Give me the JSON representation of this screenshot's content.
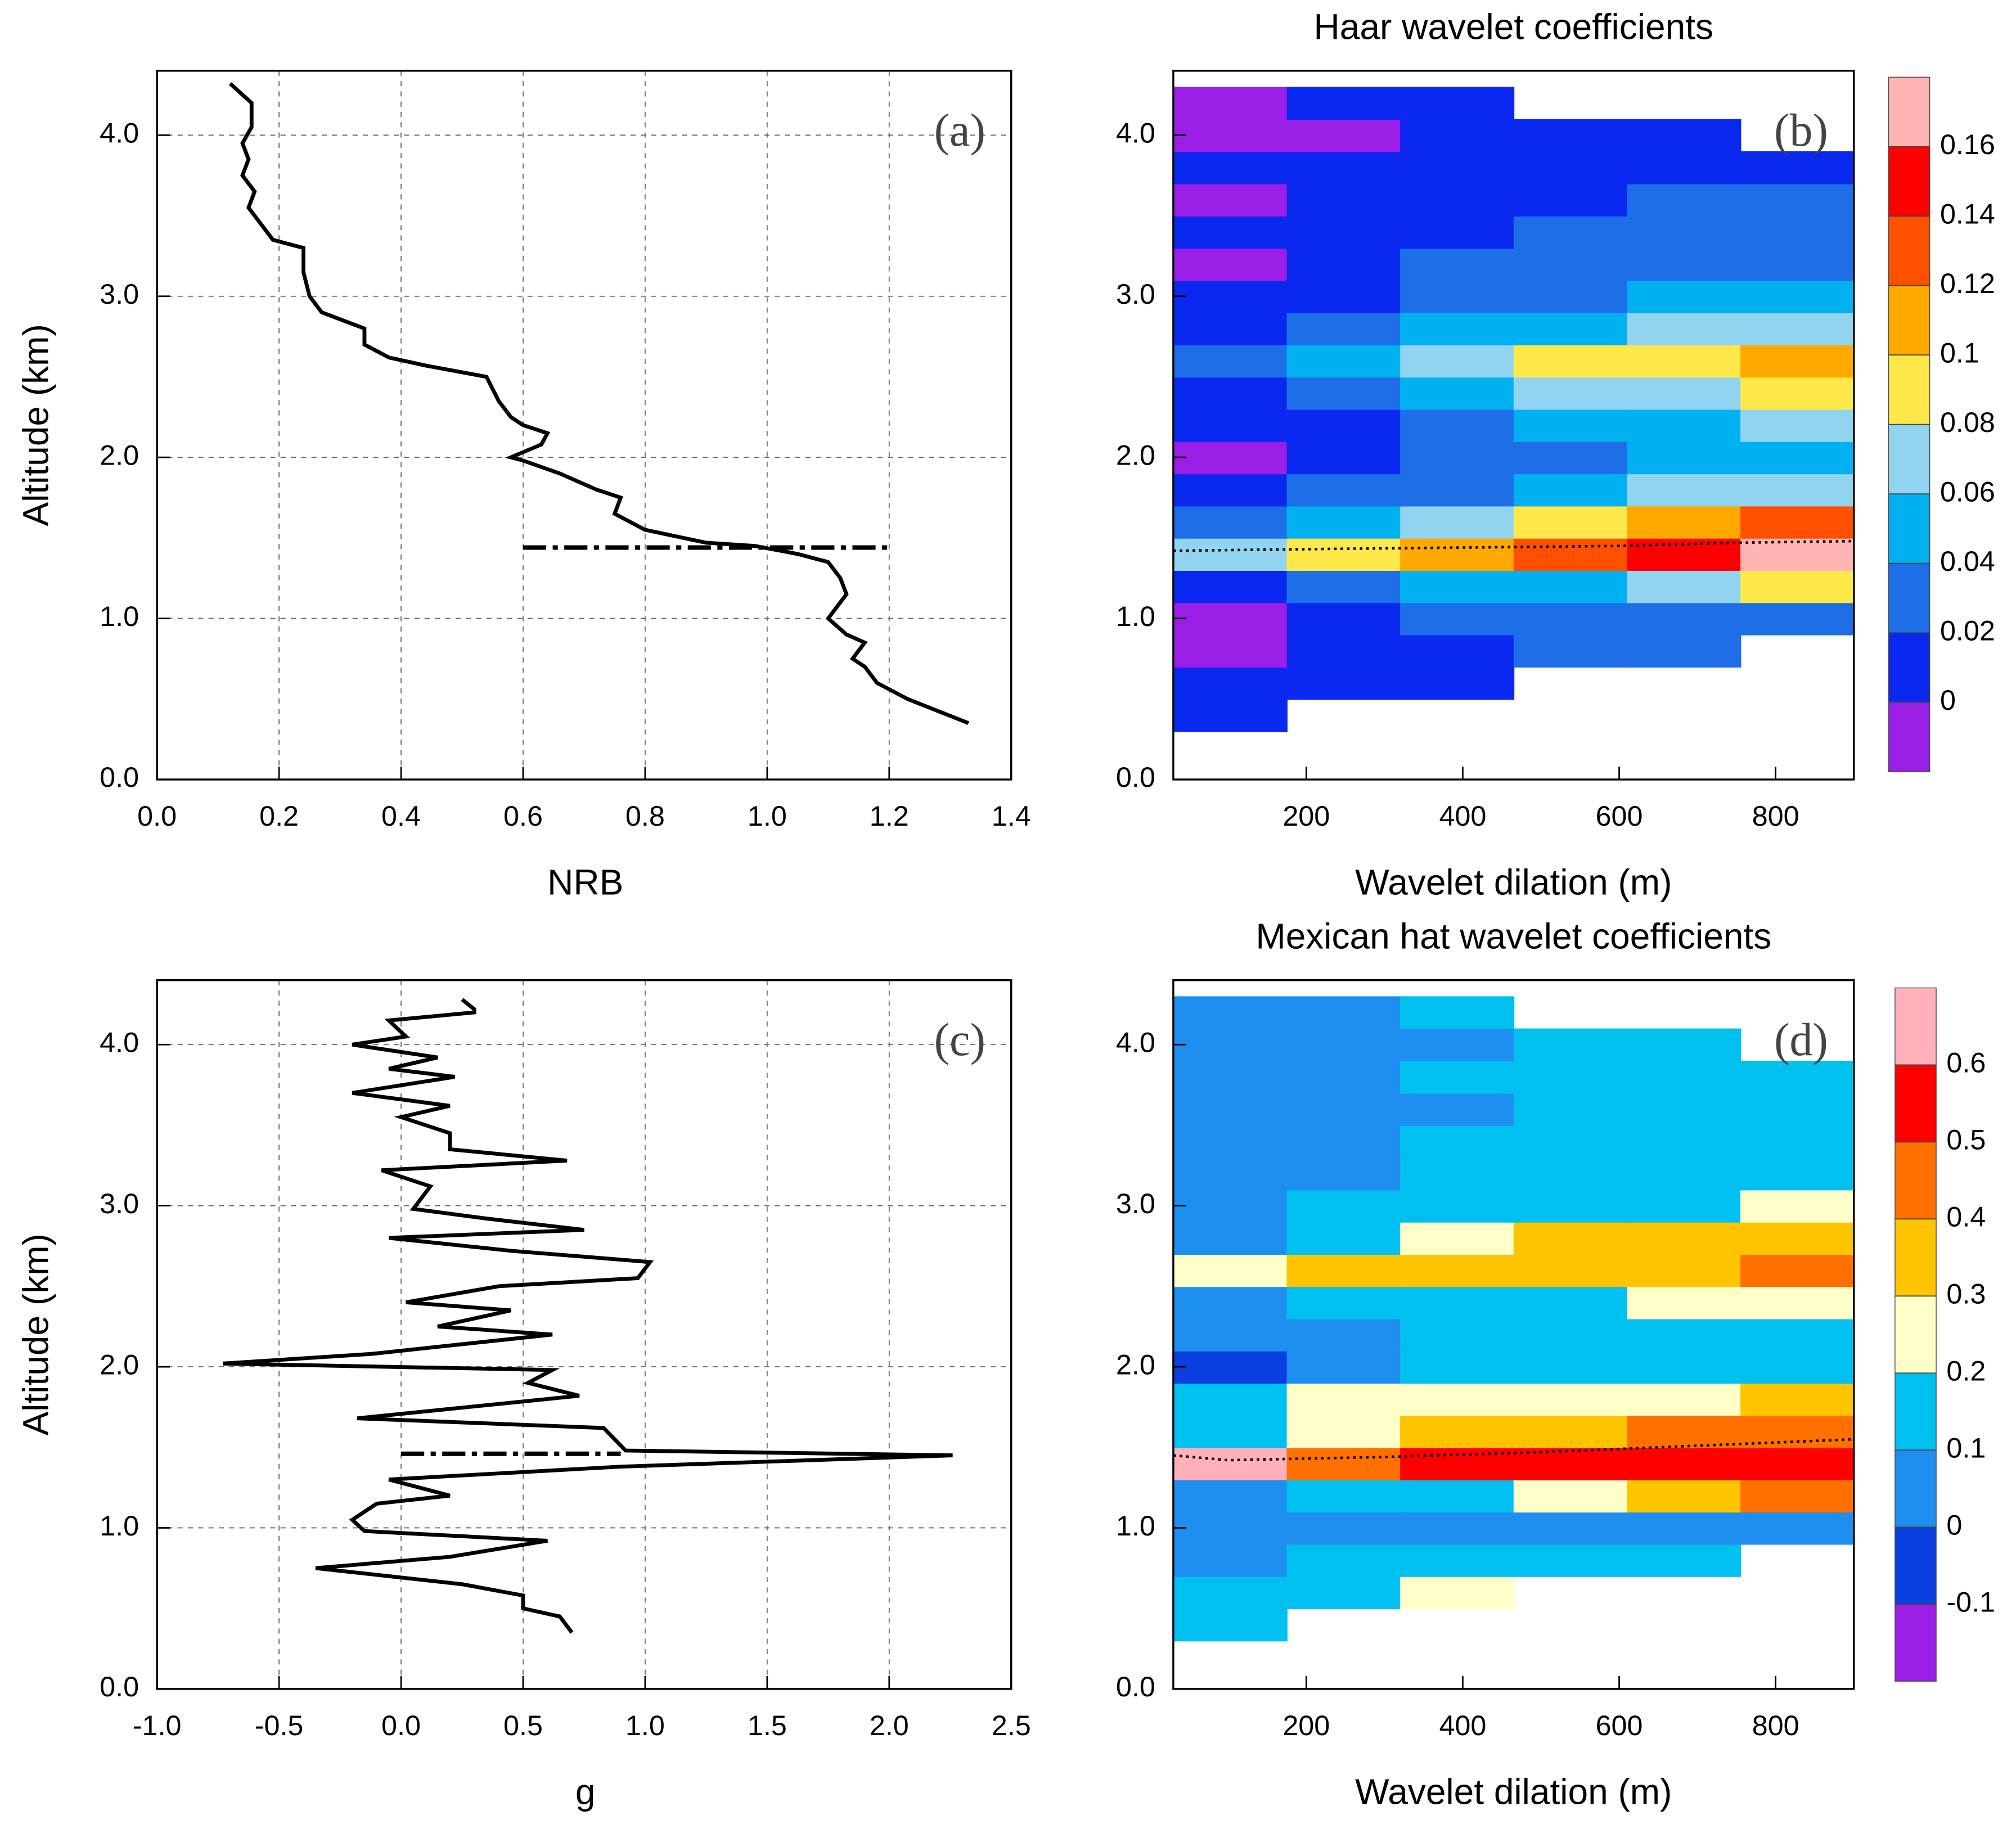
{
  "chart_data": [
    {
      "type": "line",
      "panel_label": "(a)",
      "xlabel": "NRB",
      "ylabel": "Altitude  (km)",
      "xlim": [
        0,
        1.4
      ],
      "ylim": [
        0,
        4.4
      ],
      "xticks": [
        {
          "value": 0,
          "label": "0.0"
        },
        0.2,
        0.4,
        0.6,
        0.8,
        {
          "value": 1,
          "label": "1.0"
        },
        1.2,
        1.4
      ],
      "yticks": [
        {
          "value": 0,
          "label": "0.0"
        },
        {
          "value": 1,
          "label": "1.0"
        },
        {
          "value": 2,
          "label": "2.0"
        },
        {
          "value": 3,
          "label": "3.0"
        },
        {
          "value": 4,
          "label": "4.0"
        }
      ],
      "grid": true,
      "color": "#000000",
      "profile": {
        "x": [
          0.12,
          0.155,
          0.155,
          0.14,
          0.15,
          0.14,
          0.16,
          0.15,
          0.17,
          0.19,
          0.24,
          0.24,
          0.25,
          0.27,
          0.34,
          0.34,
          0.38,
          0.44,
          0.54,
          0.56,
          0.58,
          0.6,
          0.64,
          0.63,
          0.58,
          0.6,
          0.66,
          0.72,
          0.76,
          0.75,
          0.8,
          0.9,
          0.98,
          1.05,
          1.1,
          1.12,
          1.13,
          1.1,
          1.13,
          1.16,
          1.14,
          1.16,
          1.18,
          1.23,
          1.33
        ],
        "y": [
          4.32,
          4.2,
          4.05,
          3.95,
          3.85,
          3.75,
          3.65,
          3.55,
          3.45,
          3.35,
          3.3,
          3.15,
          3.0,
          2.9,
          2.8,
          2.7,
          2.62,
          2.57,
          2.5,
          2.35,
          2.25,
          2.2,
          2.15,
          2.08,
          2.0,
          1.98,
          1.9,
          1.8,
          1.75,
          1.65,
          1.55,
          1.47,
          1.45,
          1.4,
          1.35,
          1.25,
          1.15,
          1.0,
          0.9,
          0.85,
          0.75,
          0.7,
          0.6,
          0.5,
          0.35
        ]
      },
      "boundary": {
        "x": [
          0.6,
          1.2
        ],
        "y": [
          1.44,
          1.44
        ]
      }
    },
    {
      "type": "heatmap",
      "title": "Haar wavelet coefficients",
      "panel_label": "(b)",
      "xlabel": "Wavelet dilation  (m)",
      "xlim": [
        30,
        900
      ],
      "ylim": [
        0,
        4.4
      ],
      "xticks": [
        200,
        400,
        600,
        800
      ],
      "yticks": [
        {
          "value": 0,
          "label": "0.0"
        },
        {
          "value": 1,
          "label": "1.0"
        },
        {
          "value": 2,
          "label": "2.0"
        },
        {
          "value": 3,
          "label": "3.0"
        },
        {
          "value": 4,
          "label": "4.0"
        }
      ],
      "x_edges": [
        30,
        175,
        320,
        465,
        610,
        755,
        900
      ],
      "y_edges": [
        0.3,
        0.5,
        0.7,
        0.9,
        1.1,
        1.3,
        1.5,
        1.7,
        1.9,
        2.1,
        2.3,
        2.5,
        2.7,
        2.9,
        3.1,
        3.3,
        3.5,
        3.7,
        3.9,
        4.1,
        4.3
      ],
      "z": [
        [
          0.01,
          null,
          null,
          null,
          null,
          null
        ],
        [
          0.01,
          0.01,
          0.01,
          null,
          null,
          null
        ],
        [
          -0.01,
          0.01,
          0.01,
          0.03,
          0.03,
          null
        ],
        [
          -0.01,
          0.01,
          0.02,
          0.03,
          0.03,
          0.03
        ],
        [
          0.01,
          0.03,
          0.05,
          0.05,
          0.07,
          0.09
        ],
        [
          0.07,
          0.09,
          0.11,
          0.13,
          0.15,
          0.17
        ],
        [
          0.03,
          0.05,
          0.07,
          0.09,
          0.11,
          0.13
        ],
        [
          0.01,
          0.03,
          0.03,
          0.05,
          0.07,
          0.07
        ],
        [
          -0.01,
          0.01,
          0.03,
          0.03,
          0.05,
          0.05
        ],
        [
          0.01,
          0.01,
          0.03,
          0.05,
          0.05,
          0.07
        ],
        [
          0.01,
          0.03,
          0.05,
          0.07,
          0.07,
          0.09
        ],
        [
          0.03,
          0.05,
          0.07,
          0.09,
          0.09,
          0.11
        ],
        [
          0.01,
          0.03,
          0.05,
          0.05,
          0.07,
          0.07
        ],
        [
          0.01,
          0.01,
          0.03,
          0.03,
          0.05,
          0.05
        ],
        [
          -0.01,
          0.01,
          0.03,
          0.03,
          0.03,
          0.03
        ],
        [
          0.01,
          0.01,
          0.01,
          0.03,
          0.03,
          0.03
        ],
        [
          -0.01,
          0.01,
          0.01,
          0.01,
          0.03,
          0.03
        ],
        [
          0.01,
          0.01,
          0.01,
          0.01,
          0.01,
          0.01
        ],
        [
          -0.01,
          -0.01,
          0.01,
          0.01,
          0.01,
          null
        ],
        [
          -0.01,
          0.01,
          0.01,
          null,
          null,
          null
        ]
      ],
      "levels": [
        0,
        0.02,
        0.04,
        0.06,
        0.08,
        0.1,
        0.12,
        0.14,
        0.16
      ],
      "colors": [
        "#9a1ee6",
        "#0a28f0",
        "#1e6ee8",
        "#00b0f0",
        "#90d4f0",
        "#ffe84a",
        "#ffa800",
        "#ff5000",
        "#ff0000",
        "#ffb4b4"
      ],
      "ridge": {
        "x": [
          30,
          200,
          400,
          600,
          750,
          900
        ],
        "y": [
          1.42,
          1.43,
          1.44,
          1.45,
          1.47,
          1.48
        ]
      }
    },
    {
      "type": "line",
      "panel_label": "(c)",
      "xlabel": "g",
      "ylabel": "Altitude  (km)",
      "xlim": [
        -1,
        2.5
      ],
      "ylim": [
        0,
        4.4
      ],
      "xticks": [
        {
          "value": -1,
          "label": "-1.0"
        },
        -0.5,
        {
          "value": 0,
          "label": "0.0"
        },
        0.5,
        {
          "value": 1,
          "label": "1.0"
        },
        1.5,
        {
          "value": 2,
          "label": "2.0"
        },
        2.5
      ],
      "yticks": [
        {
          "value": 0,
          "label": "0.0"
        },
        {
          "value": 1,
          "label": "1.0"
        },
        {
          "value": 2,
          "label": "2.0"
        },
        {
          "value": 3,
          "label": "3.0"
        },
        {
          "value": 4,
          "label": "4.0"
        }
      ],
      "grid": true,
      "color": "#000000",
      "profile": {
        "x": [
          0.25,
          0.3,
          0.3,
          -0.05,
          0.02,
          -0.2,
          0.15,
          -0.05,
          0.22,
          -0.2,
          0.2,
          0.0,
          0.2,
          0.2,
          0.68,
          -0.08,
          0.12,
          0.05,
          0.35,
          0.75,
          -0.05,
          0.45,
          1.02,
          0.97,
          0.4,
          0.02,
          0.45,
          0.15,
          0.62,
          -0.12,
          -0.73,
          0.62,
          0.52,
          0.73,
          -0.18,
          0.83,
          0.92,
          2.26,
          0.9,
          -0.05,
          0.2,
          -0.1,
          -0.2,
          -0.15,
          0.6,
          0.2,
          -0.35,
          0.25,
          0.5,
          0.5,
          0.65,
          0.7
        ],
        "y": [
          4.28,
          4.22,
          4.2,
          4.15,
          4.05,
          4.0,
          3.92,
          3.85,
          3.8,
          3.7,
          3.62,
          3.55,
          3.45,
          3.35,
          3.28,
          3.22,
          3.12,
          2.98,
          2.92,
          2.85,
          2.8,
          2.72,
          2.65,
          2.55,
          2.5,
          2.4,
          2.35,
          2.25,
          2.2,
          2.08,
          2.02,
          1.98,
          1.9,
          1.82,
          1.68,
          1.62,
          1.48,
          1.45,
          1.38,
          1.3,
          1.2,
          1.15,
          1.05,
          0.98,
          0.92,
          0.82,
          0.75,
          0.65,
          0.58,
          0.5,
          0.45,
          0.35
        ]
      },
      "boundary": {
        "x": [
          0,
          0.9
        ],
        "y": [
          1.46,
          1.46
        ]
      }
    },
    {
      "type": "heatmap",
      "title": "Mexican hat wavelet coefficients",
      "panel_label": "(d)",
      "xlabel": "Wavelet dilation  (m)",
      "xlim": [
        30,
        900
      ],
      "ylim": [
        0,
        4.4
      ],
      "xticks": [
        200,
        400,
        600,
        800
      ],
      "yticks": [
        {
          "value": 0,
          "label": "0.0"
        },
        {
          "value": 1,
          "label": "1.0"
        },
        {
          "value": 2,
          "label": "2.0"
        },
        {
          "value": 3,
          "label": "3.0"
        },
        {
          "value": 4,
          "label": "4.0"
        }
      ],
      "x_edges": [
        30,
        175,
        320,
        465,
        610,
        755,
        900
      ],
      "y_edges": [
        0.3,
        0.5,
        0.7,
        0.9,
        1.1,
        1.3,
        1.5,
        1.7,
        1.9,
        2.1,
        2.3,
        2.5,
        2.7,
        2.9,
        3.1,
        3.3,
        3.5,
        3.7,
        3.9,
        4.1,
        4.3
      ],
      "z": [
        [
          0.15,
          null,
          null,
          null,
          null,
          null
        ],
        [
          0.15,
          0.15,
          0.25,
          null,
          null,
          null
        ],
        [
          0.05,
          0.15,
          0.15,
          0.15,
          0.15,
          null
        ],
        [
          0.05,
          0.05,
          0.05,
          0.05,
          0.05,
          0.05
        ],
        [
          0.05,
          0.15,
          0.15,
          0.25,
          0.35,
          0.45
        ],
        [
          0.65,
          0.45,
          0.55,
          0.55,
          0.55,
          0.55
        ],
        [
          0.15,
          0.25,
          0.35,
          0.35,
          0.45,
          0.45
        ],
        [
          0.15,
          0.25,
          0.25,
          0.25,
          0.25,
          0.35
        ],
        [
          -0.05,
          0.05,
          0.15,
          0.15,
          0.15,
          0.15
        ],
        [
          0.05,
          0.05,
          0.15,
          0.15,
          0.15,
          0.15
        ],
        [
          0.05,
          0.15,
          0.15,
          0.15,
          0.25,
          0.25
        ],
        [
          0.25,
          0.35,
          0.35,
          0.35,
          0.35,
          0.45
        ],
        [
          0.05,
          0.15,
          0.25,
          0.35,
          0.35,
          0.35
        ],
        [
          0.05,
          0.15,
          0.15,
          0.15,
          0.15,
          0.25
        ],
        [
          0.05,
          0.05,
          0.15,
          0.15,
          0.15,
          0.15
        ],
        [
          0.05,
          0.05,
          0.15,
          0.15,
          0.15,
          0.15
        ],
        [
          0.05,
          0.05,
          0.05,
          0.15,
          0.15,
          0.15
        ],
        [
          0.05,
          0.05,
          0.15,
          0.15,
          0.15,
          0.15
        ],
        [
          0.05,
          0.05,
          0.05,
          0.15,
          0.15,
          null
        ],
        [
          0.05,
          0.05,
          0.15,
          null,
          null,
          null
        ]
      ],
      "levels": [
        -0.1,
        0,
        0.1,
        0.2,
        0.3,
        0.4,
        0.5,
        0.6
      ],
      "colors": [
        "#9a1ee6",
        "#0a3fe0",
        "#1e8ff0",
        "#00c0f0",
        "#ffffc8",
        "#ffc400",
        "#ff7000",
        "#ff0000",
        "#ffb0b8"
      ],
      "ridge": {
        "x": [
          30,
          100,
          300,
          500,
          700,
          900
        ],
        "y": [
          1.45,
          1.42,
          1.44,
          1.47,
          1.51,
          1.55
        ]
      }
    }
  ]
}
